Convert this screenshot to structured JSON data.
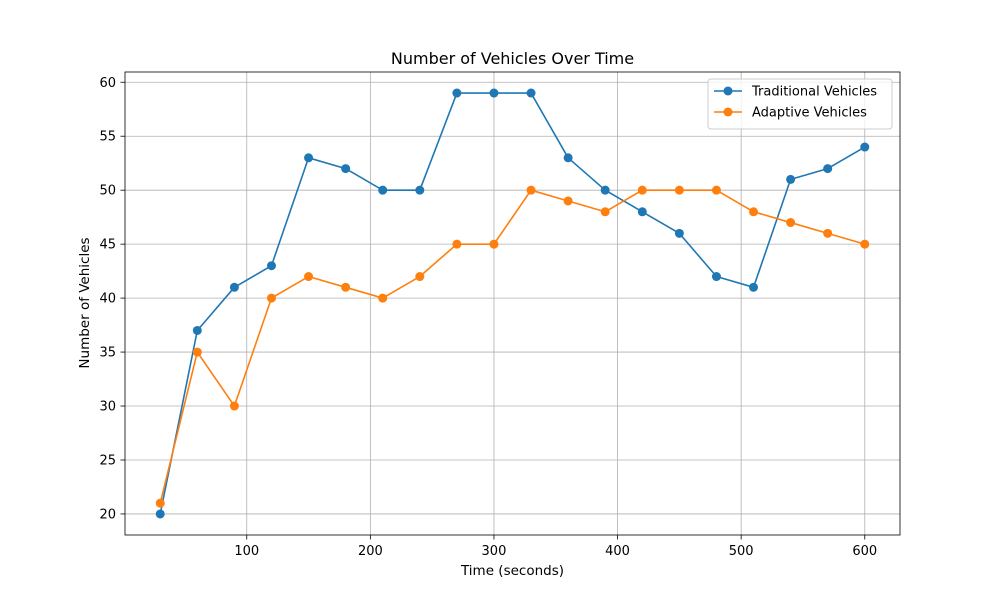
{
  "chart_data": {
    "type": "line",
    "title": "Number of Vehicles Over Time",
    "xlabel": "Time (seconds)",
    "ylabel": "Number of Vehicles",
    "x": [
      30,
      60,
      90,
      120,
      150,
      180,
      210,
      240,
      270,
      300,
      330,
      360,
      390,
      420,
      450,
      480,
      510,
      540,
      570,
      600
    ],
    "series": [
      {
        "name": "Traditional Vehicles",
        "color": "#1f77b4",
        "values": [
          20,
          37,
          41,
          43,
          53,
          52,
          50,
          50,
          59,
          59,
          59,
          53,
          50,
          48,
          46,
          42,
          41,
          51,
          52,
          54
        ]
      },
      {
        "name": "Adaptive Vehicles",
        "color": "#ff7f0e",
        "values": [
          21,
          35,
          30,
          40,
          42,
          41,
          40,
          42,
          45,
          45,
          50,
          49,
          48,
          50,
          50,
          50,
          48,
          47,
          46,
          45
        ]
      }
    ],
    "xlim": [
      1.5,
      628.5
    ],
    "ylim": [
      18.05,
      60.95
    ],
    "xticks": [
      100,
      200,
      300,
      400,
      500,
      600
    ],
    "yticks": [
      20,
      25,
      30,
      35,
      40,
      45,
      50,
      55,
      60
    ],
    "grid": true,
    "legend_position": "top-right"
  }
}
